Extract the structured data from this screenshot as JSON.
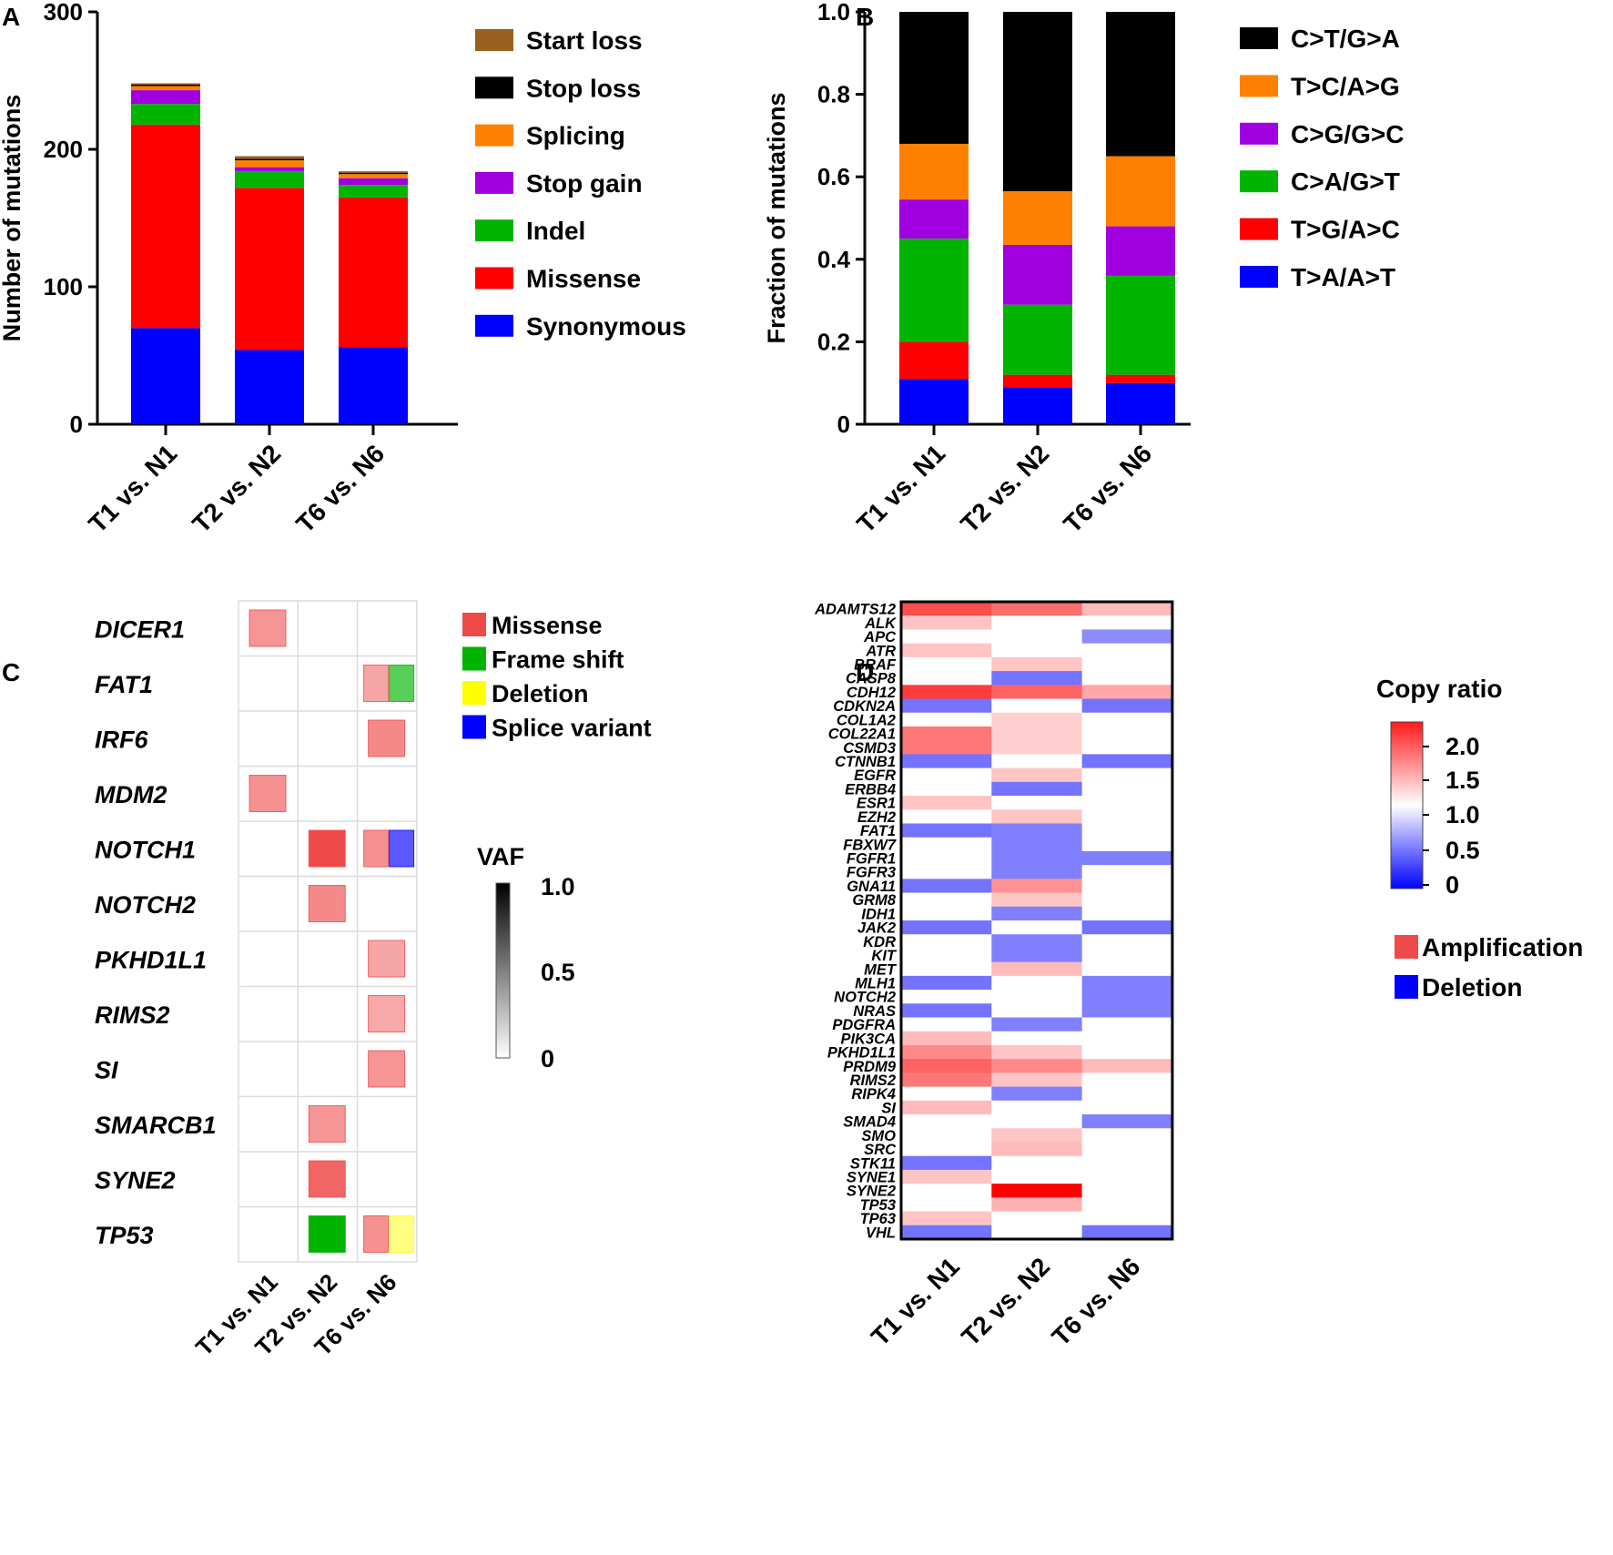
{
  "panels": {
    "a": "A",
    "b": "B",
    "c": "C",
    "d": "D"
  },
  "chart_data": [
    {
      "id": "A",
      "type": "bar",
      "stacked": true,
      "title": "",
      "xlabel": "",
      "ylabel": "Number of mutations",
      "ylim": [
        0,
        300
      ],
      "yticks": [
        "0",
        "100",
        "200",
        "300"
      ],
      "ytick_values": [
        0,
        100,
        200,
        300
      ],
      "categories": [
        "T1 vs. N1",
        "T2 vs. N2",
        "T6 vs. N6"
      ],
      "series": [
        {
          "name": "Synonymous",
          "color": "#0000ff",
          "values": [
            70,
            54,
            56
          ]
        },
        {
          "name": "Missense",
          "color": "#ff0000",
          "values": [
            148,
            118,
            109
          ]
        },
        {
          "name": "Indel",
          "color": "#00b400",
          "values": [
            15,
            12,
            9
          ]
        },
        {
          "name": "Stop gain",
          "color": "#a000e0",
          "values": [
            10,
            3,
            5
          ]
        },
        {
          "name": "Splicing",
          "color": "#ff8000",
          "values": [
            3,
            5,
            3
          ]
        },
        {
          "name": "Stop loss",
          "color": "#000000",
          "values": [
            1,
            1,
            1
          ]
        },
        {
          "name": "Start loss",
          "color": "#996020",
          "values": [
            1,
            2,
            1
          ]
        }
      ],
      "legend_order": [
        "Start loss",
        "Stop loss",
        "Splicing",
        "Stop gain",
        "Indel",
        "Missense",
        "Synonymous"
      ],
      "legend_position": "right"
    },
    {
      "id": "B",
      "type": "bar",
      "stacked": true,
      "title": "",
      "xlabel": "",
      "ylabel": "Fraction of mutations",
      "ylim": [
        0,
        1.0
      ],
      "yticks": [
        "0",
        "0.2",
        "0.4",
        "0.6",
        "0.8",
        "1.0"
      ],
      "ytick_values": [
        0,
        0.2,
        0.4,
        0.6,
        0.8,
        1.0
      ],
      "categories": [
        "T1 vs. N1",
        "T2 vs. N2",
        "T6 vs. N6"
      ],
      "series": [
        {
          "name": "T>A/A>T",
          "color": "#0000ff",
          "values": [
            0.11,
            0.09,
            0.1
          ]
        },
        {
          "name": "T>G/A>C",
          "color": "#ff0000",
          "values": [
            0.09,
            0.03,
            0.02
          ]
        },
        {
          "name": "C>A/G>T",
          "color": "#00b400",
          "values": [
            0.25,
            0.17,
            0.24
          ]
        },
        {
          "name": "C>G/G>C",
          "color": "#a000e0",
          "values": [
            0.095,
            0.145,
            0.12
          ]
        },
        {
          "name": "T>C/A>G",
          "color": "#ff8000",
          "values": [
            0.135,
            0.13,
            0.17
          ]
        },
        {
          "name": "C>T/G>A",
          "color": "#000000",
          "values": [
            0.32,
            0.435,
            0.35
          ]
        }
      ],
      "legend_order": [
        "C>T/G>A",
        "T>C/A>G",
        "C>G/G>C",
        "C>A/G>T",
        "T>G/A>C",
        "T>A/A>T"
      ],
      "legend_position": "right"
    },
    {
      "id": "C",
      "type": "heatmap",
      "title": "",
      "genes": [
        "DICER1",
        "FAT1",
        "IRF6",
        "MDM2",
        "NOTCH1",
        "NOTCH2",
        "PKHD1L1",
        "RIMS2",
        "SI",
        "SMARCB1",
        "SYNE2",
        "TP53"
      ],
      "columns": [
        "T1 vs. N1",
        "T2 vs. N2",
        "T6 vs. N6"
      ],
      "cells": [
        {
          "gene": 0,
          "col": 0,
          "type": "Missense",
          "vaf": 0.42,
          "slot": "full"
        },
        {
          "gene": 1,
          "col": 2,
          "type": "Missense",
          "vaf": 0.3,
          "slot": "left"
        },
        {
          "gene": 1,
          "col": 2,
          "type": "Frame shift",
          "vaf": 0.5,
          "slot": "right"
        },
        {
          "gene": 2,
          "col": 2,
          "type": "Missense",
          "vaf": 0.5,
          "slot": "full"
        },
        {
          "gene": 3,
          "col": 0,
          "type": "Missense",
          "vaf": 0.45,
          "slot": "full"
        },
        {
          "gene": 4,
          "col": 1,
          "type": "Missense",
          "vaf": 0.95,
          "slot": "full"
        },
        {
          "gene": 4,
          "col": 2,
          "type": "Missense",
          "vaf": 0.45,
          "slot": "left"
        },
        {
          "gene": 4,
          "col": 2,
          "type": "Splice variant",
          "vaf": 0.5,
          "slot": "right"
        },
        {
          "gene": 5,
          "col": 1,
          "type": "Missense",
          "vaf": 0.5,
          "slot": "full"
        },
        {
          "gene": 6,
          "col": 2,
          "type": "Missense",
          "vaf": 0.3,
          "slot": "full"
        },
        {
          "gene": 7,
          "col": 2,
          "type": "Missense",
          "vaf": 0.28,
          "slot": "full"
        },
        {
          "gene": 8,
          "col": 2,
          "type": "Missense",
          "vaf": 0.42,
          "slot": "full"
        },
        {
          "gene": 9,
          "col": 1,
          "type": "Missense",
          "vaf": 0.42,
          "slot": "full"
        },
        {
          "gene": 10,
          "col": 1,
          "type": "Missense",
          "vaf": 0.75,
          "slot": "full"
        },
        {
          "gene": 11,
          "col": 1,
          "type": "Frame shift",
          "vaf": 1.0,
          "slot": "full"
        },
        {
          "gene": 11,
          "col": 2,
          "type": "Missense",
          "vaf": 0.45,
          "slot": "left"
        },
        {
          "gene": 11,
          "col": 2,
          "type": "Deletion",
          "vaf": 0.3,
          "slot": "right"
        }
      ],
      "legend": [
        {
          "label": "Missense",
          "color": "#ef4a4a"
        },
        {
          "label": "Frame shift",
          "color": "#00b400"
        },
        {
          "label": "Deletion",
          "color": "#ffff00"
        },
        {
          "label": "Splice variant",
          "color": "#0000ff"
        }
      ],
      "vaf_scale": {
        "title": "VAF",
        "ticks": [
          "1.0",
          "0.5",
          "0"
        ],
        "range": [
          0,
          1
        ]
      }
    },
    {
      "id": "D",
      "type": "heatmap",
      "title": "",
      "genes": [
        "ADAMTS12",
        "ALK",
        "APC",
        "ATR",
        "BRAF",
        "CASP8",
        "CDH12",
        "CDKN2A",
        "COL1A2",
        "COL22A1",
        "CSMD3",
        "CTNNB1",
        "EGFR",
        "ERBB4",
        "ESR1",
        "EZH2",
        "FAT1",
        "FBXW7",
        "FGFR1",
        "FGFR3",
        "GNA11",
        "GRM8",
        "IDH1",
        "JAK2",
        "KDR",
        "KIT",
        "MET",
        "MLH1",
        "NOTCH2",
        "NRAS",
        "PDGFRA",
        "PIK3CA",
        "PKHD1L1",
        "PRDM9",
        "RIMS2",
        "RIPK4",
        "SI",
        "SMAD4",
        "SMO",
        "SRC",
        "STK11",
        "SYNE1",
        "SYNE2",
        "TP53",
        "TP63",
        "VHL"
      ],
      "columns": [
        "T1 vs. N1",
        "T2 vs. N2",
        "T6 vs. N6"
      ],
      "copy_ratio": [
        [
          1.9,
          1.75,
          1.35
        ],
        [
          1.3,
          1.0,
          1.0
        ],
        [
          1.0,
          1.0,
          0.55
        ],
        [
          1.3,
          1.0,
          1.0
        ],
        [
          1.0,
          1.3,
          1.0
        ],
        [
          1.0,
          0.45,
          1.0
        ],
        [
          2.0,
          1.8,
          1.45
        ],
        [
          0.45,
          1.0,
          0.45
        ],
        [
          1.0,
          1.25,
          1.0
        ],
        [
          1.7,
          1.25,
          1.0
        ],
        [
          1.7,
          1.25,
          1.0
        ],
        [
          0.45,
          1.0,
          0.45
        ],
        [
          1.0,
          1.3,
          1.0
        ],
        [
          1.0,
          0.45,
          1.0
        ],
        [
          1.3,
          1.0,
          1.0
        ],
        [
          1.0,
          1.3,
          1.0
        ],
        [
          0.45,
          0.5,
          1.0
        ],
        [
          1.0,
          0.5,
          1.0
        ],
        [
          1.0,
          0.5,
          0.5
        ],
        [
          1.0,
          0.5,
          1.0
        ],
        [
          0.45,
          1.55,
          1.0
        ],
        [
          1.0,
          1.3,
          1.0
        ],
        [
          1.0,
          0.5,
          1.0
        ],
        [
          0.45,
          1.0,
          0.45
        ],
        [
          1.0,
          0.5,
          1.0
        ],
        [
          1.0,
          0.5,
          1.0
        ],
        [
          1.0,
          1.35,
          1.0
        ],
        [
          0.45,
          1.0,
          0.5
        ],
        [
          1.0,
          1.0,
          0.5
        ],
        [
          0.45,
          1.0,
          0.5
        ],
        [
          1.0,
          0.5,
          1.0
        ],
        [
          1.35,
          1.0,
          1.0
        ],
        [
          1.6,
          1.3,
          1.0
        ],
        [
          1.8,
          1.6,
          1.35
        ],
        [
          1.7,
          1.3,
          1.0
        ],
        [
          1.0,
          0.5,
          1.0
        ],
        [
          1.35,
          1.0,
          1.0
        ],
        [
          1.0,
          1.0,
          0.5
        ],
        [
          1.0,
          1.3,
          1.0
        ],
        [
          1.0,
          1.35,
          1.0
        ],
        [
          0.45,
          1.0,
          1.0
        ],
        [
          1.3,
          1.0,
          1.0
        ],
        [
          1.0,
          2.3,
          1.0
        ],
        [
          1.0,
          1.4,
          1.0
        ],
        [
          1.3,
          1.0,
          1.0
        ],
        [
          0.45,
          1.0,
          0.45
        ]
      ],
      "scale": {
        "title": "Copy ratio",
        "ticks": [
          "2.0",
          "1.5",
          "1.0",
          "0.5",
          "0"
        ],
        "tick_values": [
          2.0,
          1.5,
          1.0,
          0.5,
          0
        ],
        "range": [
          0,
          2.3
        ]
      },
      "legend": [
        {
          "label": "Amplification",
          "color": "#ef4a4a"
        },
        {
          "label": "Deletion",
          "color": "#0000ff"
        }
      ]
    }
  ]
}
